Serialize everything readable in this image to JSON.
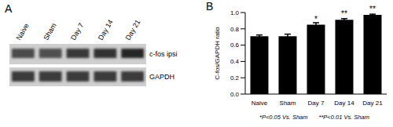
{
  "panels": {
    "left": "A",
    "right": "B"
  },
  "blot": {
    "lanes": [
      "Naive",
      "Sham",
      "Day 7",
      "Day 14",
      "Day 21"
    ],
    "rows": [
      "c-fos ipsi",
      "GAPDH"
    ]
  },
  "chart_data": {
    "type": "bar",
    "categories": [
      "Naive",
      "Sham",
      "Day 7",
      "Day 14",
      "Day 21"
    ],
    "values": [
      0.71,
      0.71,
      0.85,
      0.91,
      0.97
    ],
    "errors": [
      0.015,
      0.025,
      0.025,
      0.015,
      0.01
    ],
    "significance": [
      null,
      null,
      "*",
      "**",
      "**"
    ],
    "color": "#000000",
    "y_label": "C-fos/GAPDH ratio",
    "ylim": [
      0,
      1
    ],
    "yticks": [
      {
        "value": 0,
        "label": "0.0"
      },
      {
        "value": 0.2,
        "label": "0.2"
      },
      {
        "value": 0.4,
        "label": "0.4"
      },
      {
        "value": 0.6,
        "label": "0.6"
      },
      {
        "value": 0.8,
        "label": "0.8"
      },
      {
        "value": 1,
        "label": "1.0"
      }
    ],
    "grid": false,
    "footnotes": [
      "*P<0.05 Vs. Sham",
      "**P<0.01 Vs. Sham"
    ]
  }
}
